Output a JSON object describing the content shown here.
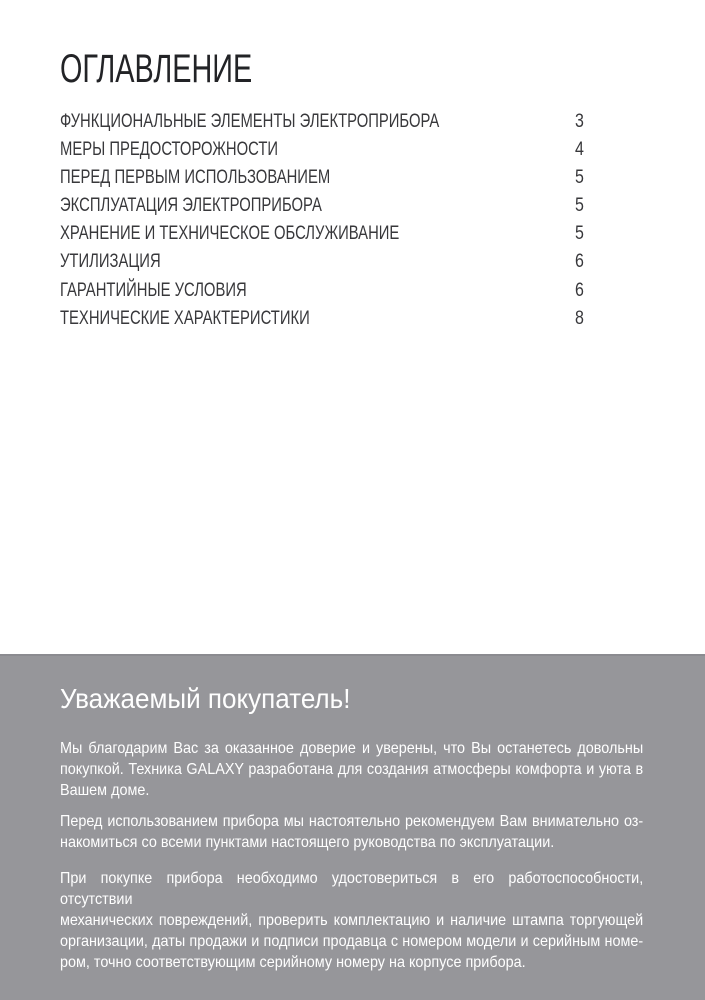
{
  "colors": {
    "section_bg": "#96969a",
    "section_border": "#8b8b90",
    "title_text": "#222326",
    "toc_text": "#38383b",
    "heading_text": "#ffffff",
    "body_text": "#ffffff"
  },
  "toc": {
    "title": "ОГЛАВЛЕНИЕ",
    "entries": [
      {
        "label": "ФУНКЦИОНАЛЬНЫЕ ЭЛЕМЕНТЫ ЭЛЕКТРОПРИБОРА",
        "page": "3"
      },
      {
        "label": "МЕРЫ ПРЕДОСТОРОЖНОСТИ",
        "page": "4"
      },
      {
        "label": "ПЕРЕД ПЕРВЫМ ИСПОЛЬЗОВАНИЕМ",
        "page": "5"
      },
      {
        "label": "ЭКСПЛУАТАЦИЯ ЭЛЕКТРОПРИБОРА",
        "page": "5"
      },
      {
        "label": "ХРАНЕНИЕ И ТЕХНИЧЕСКОЕ ОБСЛУЖИВАНИЕ",
        "page": "5"
      },
      {
        "label": "УТИЛИЗАЦИЯ",
        "page": "6"
      },
      {
        "label": "ГАРАНТИЙНЫЕ УСЛОВИЯ",
        "page": "6"
      },
      {
        "label": "ТЕХНИЧЕСКИЕ ХАРАКТЕРИСТИКИ",
        "page": "8"
      }
    ]
  },
  "greeting": {
    "heading": "Уважаемый покупатель!",
    "paragraphs": [
      {
        "lines": [
          "Мы благодарим Вас за оказанное доверие и уверены, что Вы останетесь довольны",
          "покупкой. Техника GALAXY разработана для создания атмосферы комфорта и уюта в",
          "Вашем доме."
        ]
      },
      {
        "lines": [
          "Перед использованием прибора мы настоятельно рекомендуем Вам внимательно оз-",
          "накомиться со всеми пунктами настоящего руководства по эксплуатации."
        ]
      },
      {
        "lines": [
          "При покупке прибора необходимо удостовериться в его работоспособности, отсутствии",
          "механических повреждений, проверить комплектацию и наличие штампа торгующей",
          "организации, даты продажи и подписи продавца с номером модели и серийным номе-",
          "ром, точно соответствующим серийному номеру на корпусе прибора."
        ]
      }
    ]
  }
}
